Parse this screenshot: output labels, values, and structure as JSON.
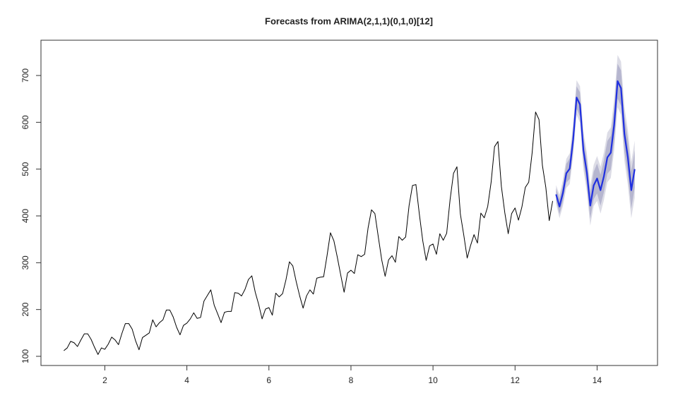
{
  "chart_data": {
    "type": "line",
    "title": "Forecasts from ARIMA(2,1,1)(0,1,0)[12]",
    "xlim": [
      0.443,
      15.473
    ],
    "ylim": [
      80.4,
      775.4
    ],
    "xticks": [
      2,
      4,
      6,
      8,
      10,
      12,
      14
    ],
    "yticks": [
      100,
      200,
      300,
      400,
      500,
      600,
      700
    ],
    "series": [
      {
        "color": "#000000",
        "x": [
          1,
          1.0833,
          1.1667,
          1.25,
          1.3333,
          1.4167,
          1.5,
          1.5833,
          1.6667,
          1.75,
          1.8333,
          1.9167,
          2,
          2.0833,
          2.1667,
          2.25,
          2.3333,
          2.4167,
          2.5,
          2.5833,
          2.6667,
          2.75,
          2.8333,
          2.9167,
          3,
          3.0833,
          3.1667,
          3.25,
          3.3333,
          3.4167,
          3.5,
          3.5833,
          3.6667,
          3.75,
          3.8333,
          3.9167,
          4,
          4.0833,
          4.1667,
          4.25,
          4.3333,
          4.4167,
          4.5,
          4.5833,
          4.6667,
          4.75,
          4.8333,
          4.9167,
          5,
          5.0833,
          5.1667,
          5.25,
          5.3333,
          5.4167,
          5.5,
          5.5833,
          5.6667,
          5.75,
          5.8333,
          5.9167,
          6,
          6.0833,
          6.1667,
          6.25,
          6.3333,
          6.4167,
          6.5,
          6.5833,
          6.6667,
          6.75,
          6.8333,
          6.9167,
          7,
          7.0833,
          7.1667,
          7.25,
          7.3333,
          7.4167,
          7.5,
          7.5833,
          7.6667,
          7.75,
          7.8333,
          7.9167,
          8,
          8.0833,
          8.1667,
          8.25,
          8.3333,
          8.4167,
          8.5,
          8.5833,
          8.6667,
          8.75,
          8.8333,
          8.9167,
          9,
          9.0833,
          9.1667,
          9.25,
          9.3333,
          9.4167,
          9.5,
          9.5833,
          9.6667,
          9.75,
          9.8333,
          9.9167,
          10,
          10.0833,
          10.1667,
          10.25,
          10.3333,
          10.4167,
          10.5,
          10.5833,
          10.6667,
          10.75,
          10.8333,
          10.9167,
          11,
          11.0833,
          11.1667,
          11.25,
          11.3333,
          11.4167,
          11.5,
          11.5833,
          11.6667,
          11.75,
          11.8333,
          11.9167,
          12,
          12.0833,
          12.1667,
          12.25,
          12.3333,
          12.4167,
          12.5,
          12.5833,
          12.6667,
          12.75,
          12.8333,
          12.9167
        ],
        "values": [
          112,
          118,
          132,
          129,
          121,
          135,
          148,
          148,
          136,
          119,
          104,
          118,
          115,
          126,
          141,
          135,
          125,
          149,
          170,
          170,
          158,
          133,
          114,
          140,
          145,
          150,
          178,
          163,
          172,
          178,
          199,
          199,
          184,
          162,
          146,
          166,
          171,
          180,
          193,
          181,
          183,
          218,
          230,
          242,
          209,
          191,
          172,
          194,
          196,
          196,
          236,
          235,
          229,
          243,
          264,
          272,
          237,
          211,
          180,
          201,
          204,
          188,
          235,
          227,
          234,
          264,
          302,
          293,
          259,
          229,
          203,
          229,
          242,
          233,
          267,
          269,
          270,
          315,
          364,
          347,
          312,
          274,
          237,
          278,
          284,
          277,
          317,
          313,
          318,
          374,
          413,
          405,
          355,
          306,
          271,
          306,
          315,
          301,
          356,
          348,
          355,
          422,
          465,
          467,
          404,
          347,
          305,
          336,
          340,
          318,
          362,
          348,
          363,
          435,
          491,
          505,
          404,
          359,
          310,
          337,
          360,
          342,
          406,
          396,
          420,
          472,
          548,
          559,
          463,
          407,
          362,
          405,
          417,
          391,
          419,
          461,
          472,
          535,
          622,
          606,
          508,
          461,
          390,
          432
        ]
      },
      {
        "color": "#1f2fe0",
        "x": [
          13,
          13.0833,
          13.1667,
          13.25,
          13.3333,
          13.4167,
          13.5,
          13.5833,
          13.6667,
          13.75,
          13.8333,
          13.9167,
          14,
          14.0833,
          14.1667,
          14.25,
          14.3333,
          14.4167,
          14.5,
          14.5833,
          14.6667,
          14.75,
          14.8333,
          14.9167
        ],
        "values": [
          446,
          420,
          449,
          491,
          501,
          563,
          653,
          638,
          540,
          493,
          422,
          465,
          480,
          455,
          485,
          525,
          535,
          595,
          688,
          673,
          575,
          525,
          455,
          500
        ],
        "intervals": [
          {
            "color": "#dcdce6",
            "lower": [
              426,
              395,
              421,
              460,
              468,
              528,
              616,
              599,
              499,
              451,
              379,
              421,
              432,
              405,
              434,
              472,
              481,
              540,
              632,
              616,
              517,
              466,
              395,
              439
            ],
            "upper": [
              466,
              445,
              477,
              522,
              534,
              598,
              690,
              677,
              581,
              535,
              465,
              509,
              528,
              505,
              536,
              578,
              589,
              650,
              744,
              730,
              633,
              584,
              515,
              561
            ]
          },
          {
            "color": "#b6b6cf",
            "lower": [
              433,
              404,
              431,
              471,
              479,
              540,
              629,
              612,
              513,
              465,
              394,
              436,
              448,
              422,
              451,
              490,
              499,
              559,
              651,
              635,
              537,
              486,
              415,
              460
            ],
            "upper": [
              459,
              436,
              467,
              511,
              523,
              586,
              677,
              664,
              567,
              521,
              450,
              494,
              512,
              488,
              519,
              560,
              571,
              631,
              725,
              711,
              613,
              564,
              495,
              540
            ]
          }
        ]
      }
    ]
  }
}
